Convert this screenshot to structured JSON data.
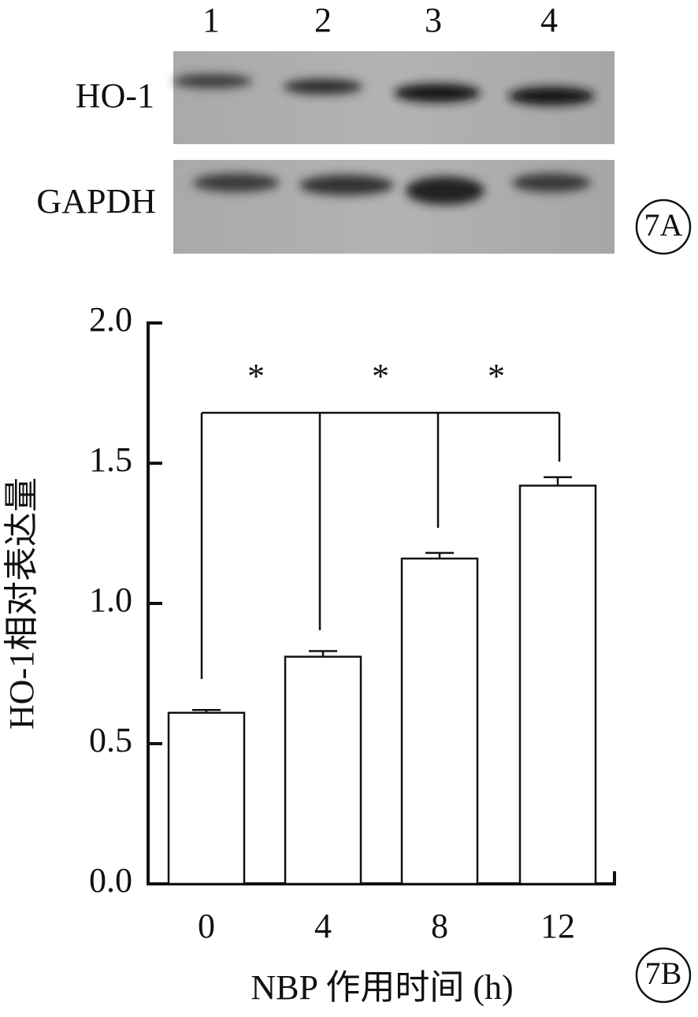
{
  "chart_data": {
    "type": "bar",
    "blot": {
      "lanes": [
        "1",
        "2",
        "3",
        "4"
      ],
      "rows": [
        "HO-1",
        "GAPDH"
      ],
      "label": "7A"
    },
    "panel_label": "7B",
    "ylabel": "HO-1相对表达量",
    "xlabel": "NBP 作用时间 (h)",
    "categories": [
      "0",
      "4",
      "8",
      "12"
    ],
    "values": [
      0.61,
      0.81,
      1.16,
      1.42
    ],
    "errors": [
      0.01,
      0.02,
      0.02,
      0.03
    ],
    "significance": [
      "*",
      "*",
      "*"
    ],
    "color": "#ffffff",
    "ylim": [
      0,
      2
    ],
    "yticks": [
      {
        "value": 0,
        "label": "0.0"
      },
      0.5,
      {
        "value": 1,
        "label": "1.0"
      },
      1.5,
      {
        "value": 2,
        "label": "2.0"
      }
    ],
    "grid": false
  }
}
